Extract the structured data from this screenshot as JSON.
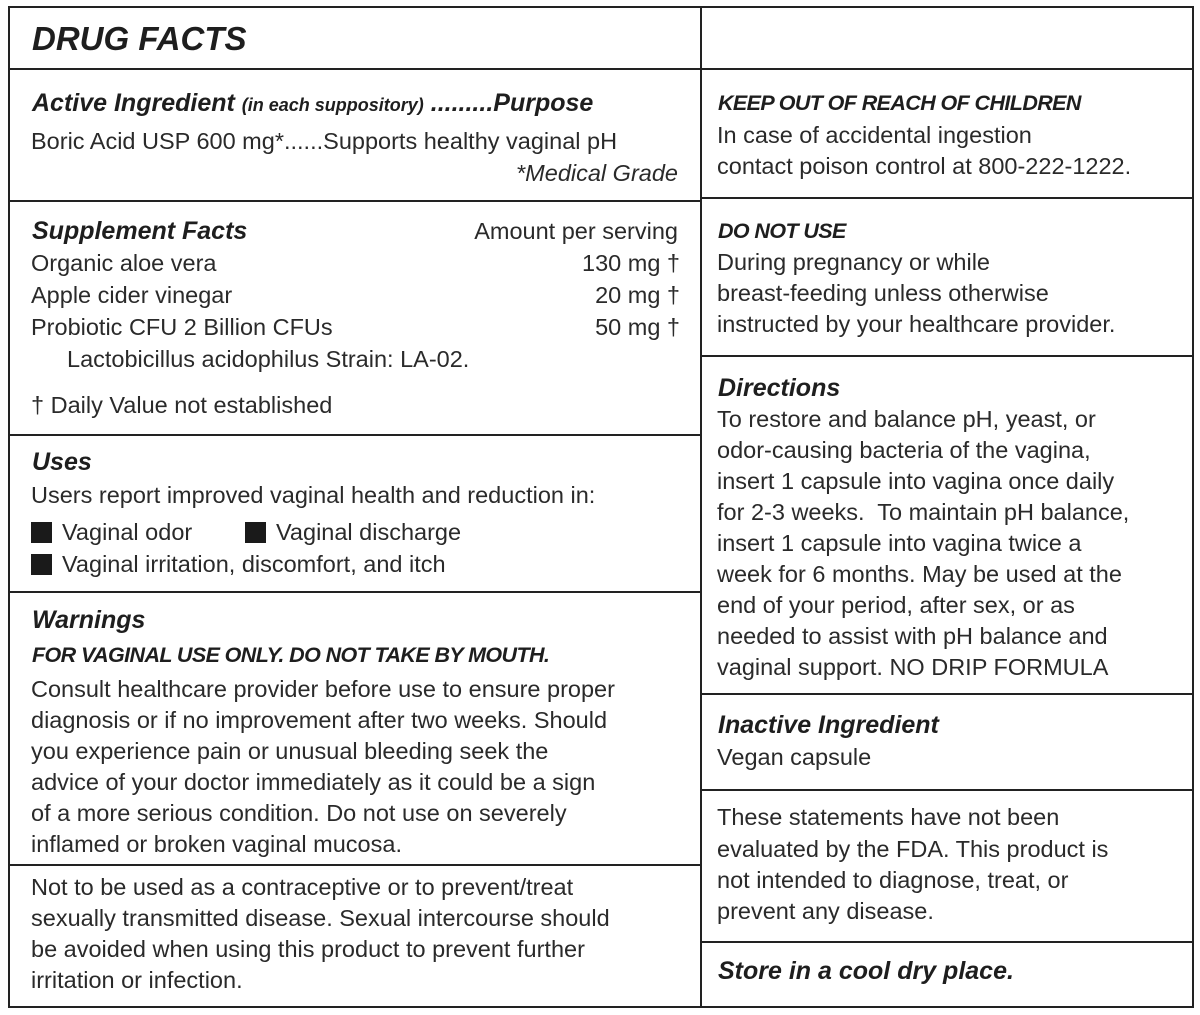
{
  "title": "DRUG FACTS",
  "active": {
    "heading": "Active Ingredient",
    "heading_note": "(in each suppository)",
    "heading_purpose": " .........Purpose",
    "line": "Boric Acid USP 600 mg*......Supports healthy vaginal pH",
    "footnote": "*Medical Grade"
  },
  "supplement": {
    "heading": "Supplement Facts",
    "amount_header": "Amount per serving",
    "rows": [
      {
        "name": "Organic aloe vera",
        "amount": "130 mg †"
      },
      {
        "name": "Apple cider vinegar",
        "amount": "20 mg †"
      },
      {
        "name": "Probiotic CFU 2 Billion CFUs",
        "amount": "50 mg †"
      }
    ],
    "strain": "Lactobicillus acidophilus Strain: LA-02.",
    "daily_value_note": "† Daily Value not established"
  },
  "uses": {
    "heading": "Uses",
    "intro": "Users report improved vaginal health and reduction in:",
    "items": [
      "Vaginal odor",
      "Vaginal discharge",
      "Vaginal irritation, discomfort, and itch"
    ]
  },
  "warnings": {
    "heading": "Warnings",
    "caps": "FOR VAGINAL USE ONLY. DO NOT TAKE BY MOUTH.",
    "lines": [
      "Consult healthcare provider before use to ensure proper",
      "diagnosis or if no improvement after two weeks. Should",
      "you experience pain or unusual bleeding seek the",
      "advice of your doctor immediately as it could be a sign",
      "of a more serious condition. Do not use on severely",
      "inflamed or broken vaginal mucosa."
    ]
  },
  "contraceptive": {
    "lines": [
      "Not to be used as a contraceptive or to prevent/treat",
      "sexually transmitted disease. Sexual intercourse should",
      "be avoided when using this product to prevent further",
      "irritation or infection."
    ]
  },
  "keep_out": {
    "heading": "KEEP OUT OF REACH OF CHILDREN",
    "lines": [
      "In case of accidental ingestion",
      "contact poison control at 800-222-1222."
    ]
  },
  "do_not_use": {
    "heading": "DO NOT USE",
    "lines": [
      "During pregnancy or while",
      "breast-feeding unless otherwise",
      "instructed by your healthcare provider."
    ]
  },
  "directions": {
    "heading": "Directions",
    "lines": [
      "To restore and balance pH, yeast, or",
      "odor-causing bacteria of the vagina,",
      "insert 1 capsule into vagina once daily",
      "for 2-3 weeks.  To maintain pH balance,",
      "insert 1 capsule into vagina twice a",
      "week for 6 months. May be used at the",
      "end of your period, after sex, or as",
      "needed to assist with pH balance and",
      "vaginal support. NO DRIP FORMULA"
    ]
  },
  "inactive": {
    "heading": "Inactive Ingredient",
    "line": "Vegan capsule"
  },
  "fda": {
    "lines": [
      "These statements have not been",
      "evaluated by the FDA. This product is",
      "not intended to diagnose, treat, or",
      "prevent any disease."
    ]
  },
  "storage": "Store in a cool dry place."
}
